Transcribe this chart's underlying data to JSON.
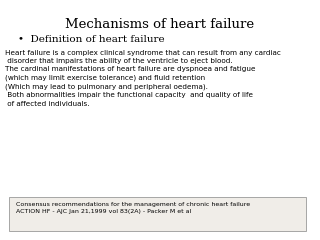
{
  "title": "Mechanisms of heart failure",
  "subtitle": "•  Definition of heart failure",
  "body_lines": [
    "Heart failure is a complex clinical syndrome that can result from any cardiac",
    " disorder that impairs the ability of the ventricle to eject blood.",
    "The cardinal manifestations of heart failure are dyspnoea and fatigue",
    "(which may limit exercise tolerance) and fluid retention",
    "(Which may lead to pulmonary and peripheral oedema).",
    " Both abnormalities impair the functional capacity  and quality of life",
    " of affected individuals."
  ],
  "footnote_lines": [
    "Consensus recommendations for the management of chronic heart failure",
    "ACTION HF - AJC Jan 21,1999 vol 83(2A) - Packer M et al"
  ],
  "bg_color": "#ffffff",
  "box_color": "#f0ede8",
  "title_fontsize": 9.5,
  "subtitle_fontsize": 7.5,
  "body_fontsize": 5.2,
  "footnote_fontsize": 4.5
}
